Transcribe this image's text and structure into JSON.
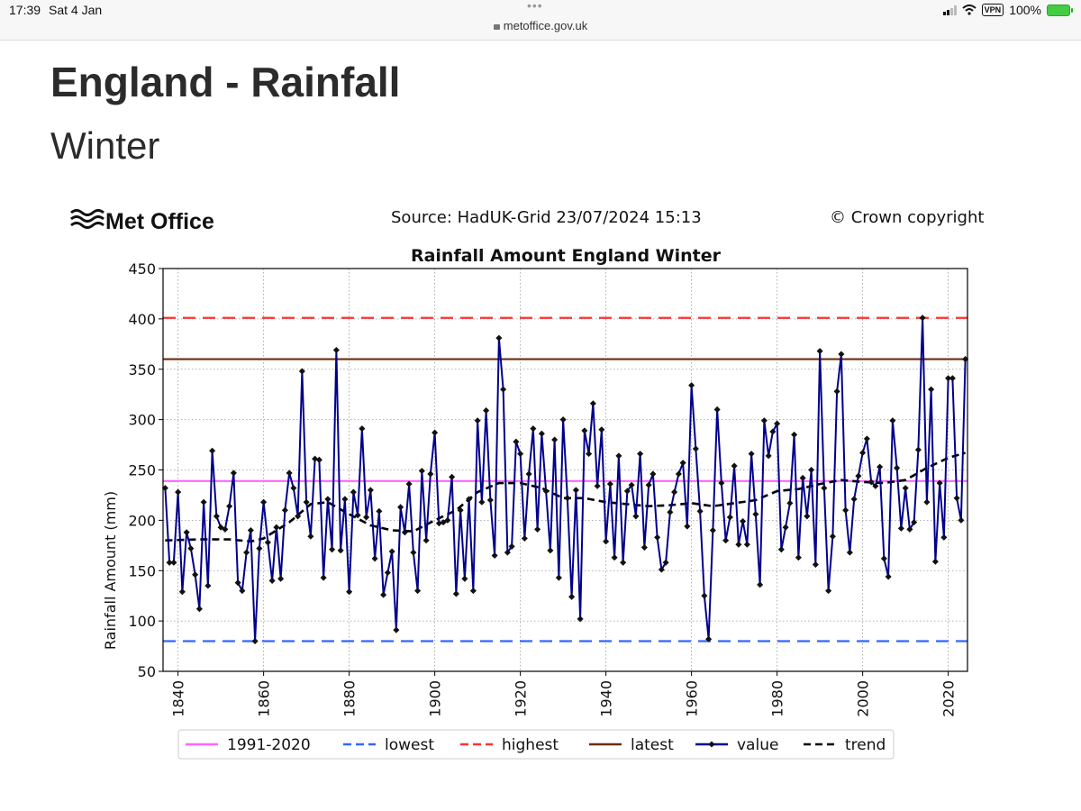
{
  "status_bar": {
    "time": "17:39",
    "date": "Sat 4 Jan",
    "url": "metoffice.gov.uk",
    "vpn_label": "VPN",
    "battery": "100%",
    "menu_dots": "•••"
  },
  "page": {
    "title": "England - Rainfall",
    "subtitle": "Winter"
  },
  "chart_header": {
    "brand": "Met Office",
    "source": "Source: HadUK-Grid 23/07/2024 15:13",
    "copyright": "© Crown copyright"
  },
  "colors": {
    "value": "#00008b",
    "trend": "#000000",
    "average": "#ff66ff",
    "lowest": "#3366ff",
    "highest": "#ff3333",
    "latest": "#6b2e0a"
  },
  "chart_data": {
    "type": "line",
    "title": "Rainfall Amount England Winter",
    "xlabel": "",
    "ylabel": "Rainfall Amount (mm)",
    "xlim": [
      1836.5,
      2024.5
    ],
    "ylim": [
      50,
      450
    ],
    "xticks": [
      1840,
      1860,
      1880,
      1900,
      1920,
      1940,
      1960,
      1980,
      2000,
      2020
    ],
    "yticks": [
      50,
      100,
      150,
      200,
      250,
      300,
      350,
      400,
      450
    ],
    "grid": true,
    "legend_position": "bottom",
    "reference_lines": [
      {
        "name": "1991-2020",
        "value": 239,
        "style": "solid",
        "color_key": "average"
      },
      {
        "name": "lowest",
        "value": 80,
        "style": "dashed",
        "color_key": "lowest"
      },
      {
        "name": "highest",
        "value": 401,
        "style": "dashed",
        "color_key": "highest"
      },
      {
        "name": "latest",
        "value": 360,
        "style": "solid",
        "color_key": "latest"
      }
    ],
    "legend": [
      "1991-2020",
      "lowest",
      "highest",
      "latest",
      "value",
      "trend"
    ],
    "series": [
      {
        "name": "value",
        "x": [
          1837,
          1838,
          1839,
          1840,
          1841,
          1842,
          1843,
          1844,
          1845,
          1846,
          1847,
          1848,
          1849,
          1850,
          1851,
          1852,
          1853,
          1854,
          1855,
          1856,
          1857,
          1858,
          1859,
          1860,
          1861,
          1862,
          1863,
          1864,
          1865,
          1866,
          1867,
          1868,
          1869,
          1870,
          1871,
          1872,
          1873,
          1874,
          1875,
          1876,
          1877,
          1878,
          1879,
          1880,
          1881,
          1882,
          1883,
          1884,
          1885,
          1886,
          1887,
          1888,
          1889,
          1890,
          1891,
          1892,
          1893,
          1894,
          1895,
          1896,
          1897,
          1898,
          1899,
          1900,
          1901,
          1902,
          1903,
          1904,
          1905,
          1906,
          1907,
          1908,
          1909,
          1910,
          1911,
          1912,
          1913,
          1914,
          1915,
          1916,
          1917,
          1918,
          1919,
          1920,
          1921,
          1922,
          1923,
          1924,
          1925,
          1926,
          1927,
          1928,
          1929,
          1930,
          1931,
          1932,
          1933,
          1934,
          1935,
          1936,
          1937,
          1938,
          1939,
          1940,
          1941,
          1942,
          1943,
          1944,
          1945,
          1946,
          1947,
          1948,
          1949,
          1950,
          1951,
          1952,
          1953,
          1954,
          1955,
          1956,
          1957,
          1958,
          1959,
          1960,
          1961,
          1962,
          1963,
          1964,
          1965,
          1966,
          1967,
          1968,
          1969,
          1970,
          1971,
          1972,
          1973,
          1974,
          1975,
          1976,
          1977,
          1978,
          1979,
          1980,
          1981,
          1982,
          1983,
          1984,
          1985,
          1986,
          1987,
          1988,
          1989,
          1990,
          1991,
          1992,
          1993,
          1994,
          1995,
          1996,
          1997,
          1998,
          1999,
          2000,
          2001,
          2002,
          2003,
          2004,
          2005,
          2006,
          2007,
          2008,
          2009,
          2010,
          2011,
          2012,
          2013,
          2014,
          2015,
          2016,
          2017,
          2018,
          2019,
          2020,
          2021,
          2022,
          2023,
          2024
        ],
        "values": [
          232,
          158,
          158,
          228,
          129,
          188,
          172,
          146,
          112,
          218,
          135,
          269,
          204,
          193,
          191,
          214,
          247,
          138,
          130,
          168,
          190,
          80,
          172,
          218,
          178,
          140,
          193,
          142,
          210,
          247,
          232,
          204,
          348,
          218,
          184,
          261,
          260,
          143,
          221,
          171,
          369,
          170,
          221,
          129,
          228,
          205,
          291,
          203,
          230,
          162,
          209,
          126,
          148,
          169,
          91,
          213,
          188,
          236,
          168,
          130,
          249,
          180,
          246,
          287,
          197,
          198,
          200,
          243,
          127,
          210,
          142,
          221,
          130,
          299,
          218,
          309,
          220,
          165,
          381,
          330,
          168,
          174,
          278,
          266,
          182,
          246,
          291,
          191,
          286,
          229,
          170,
          280,
          143,
          300,
          222,
          124,
          230,
          102,
          289,
          266,
          316,
          234,
          290,
          179,
          236,
          163,
          264,
          158,
          229,
          235,
          204,
          266,
          173,
          235,
          246,
          183,
          151,
          158,
          208,
          228,
          246,
          257,
          194,
          334,
          271,
          209,
          125,
          82,
          190,
          310,
          237,
          180,
          203,
          254,
          176,
          199,
          176,
          266,
          206,
          136,
          299,
          264,
          288,
          296,
          171,
          193,
          217,
          285,
          163,
          242,
          204,
          250,
          156,
          368,
          232,
          130,
          184,
          328,
          365,
          210,
          168,
          221,
          244,
          267,
          281,
          238,
          234,
          253,
          162,
          144,
          299,
          252,
          192,
          232,
          191,
          198,
          270,
          401,
          218,
          330,
          159,
          237,
          183,
          341,
          341,
          222,
          200,
          360
        ]
      },
      {
        "name": "trend",
        "x": [
          1837,
          1845,
          1852,
          1857,
          1860,
          1866,
          1871,
          1875,
          1880,
          1885,
          1890,
          1895,
          1900,
          1905,
          1910,
          1915,
          1920,
          1925,
          1930,
          1935,
          1940,
          1945,
          1950,
          1955,
          1960,
          1965,
          1970,
          1975,
          1980,
          1985,
          1990,
          1995,
          2000,
          2005,
          2010,
          2015,
          2020,
          2024
        ],
        "values": [
          180,
          181,
          181,
          179,
          182,
          198,
          216,
          218,
          206,
          195,
          190,
          189,
          200,
          210,
          228,
          237,
          237,
          232,
          222,
          222,
          218,
          216,
          214,
          215,
          217,
          214,
          217,
          220,
          229,
          231,
          236,
          240,
          238,
          237,
          240,
          252,
          262,
          267
        ]
      }
    ]
  }
}
